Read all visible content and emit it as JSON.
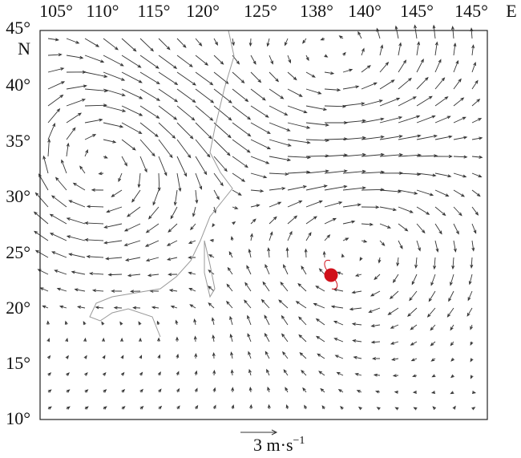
{
  "map": {
    "top_labels": [
      "105°",
      "110°",
      "115°",
      "120°",
      "125°",
      "138°",
      "140°",
      "145°",
      "145°",
      "E"
    ],
    "left_labels": [
      "45°",
      "N",
      "40°",
      "35°",
      "30°",
      "25°",
      "20°",
      "15°",
      "10°"
    ],
    "scale_label": {
      "text": "3 m·s",
      "exponent": "−1"
    }
  }
}
